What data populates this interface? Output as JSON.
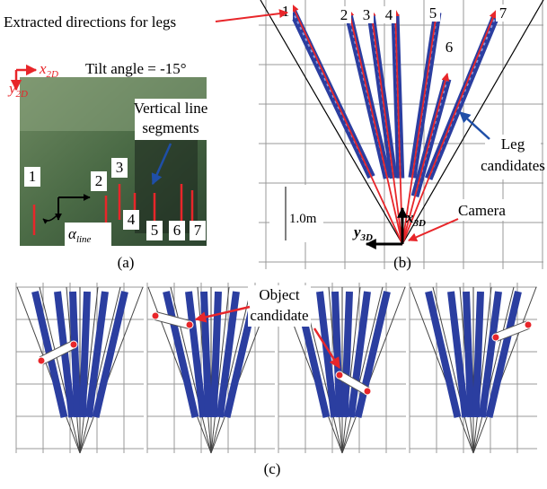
{
  "panel_a": {
    "caption": "(a)",
    "tilt_label": "Tilt angle = -15°",
    "x_axis": {
      "symbol": "x",
      "subscript": "2D"
    },
    "y_axis": {
      "symbol": "y",
      "subscript": "2D"
    },
    "segments_label": [
      "Vertical line",
      "segments"
    ],
    "line_labels": [
      "1",
      "2",
      "3",
      "4",
      "5",
      "6",
      "7"
    ],
    "angle_label": {
      "symbol": "α",
      "subscript": "line"
    }
  },
  "panel_b": {
    "caption": "(b)",
    "directions_label": "Extracted directions for legs",
    "direction_labels": [
      "1",
      "2",
      "3",
      "4",
      "5",
      "6",
      "7"
    ],
    "legs_label": [
      "Leg",
      "candidates"
    ],
    "camera_label": "Camera",
    "x_axis": {
      "symbol": "x",
      "subscript": "3D"
    },
    "y_axis": {
      "symbol": "y",
      "subscript": "3D"
    },
    "scale_label": "1.0m"
  },
  "panel_c": {
    "caption": "(c)",
    "object_label": [
      "Object",
      "candidate"
    ]
  }
}
